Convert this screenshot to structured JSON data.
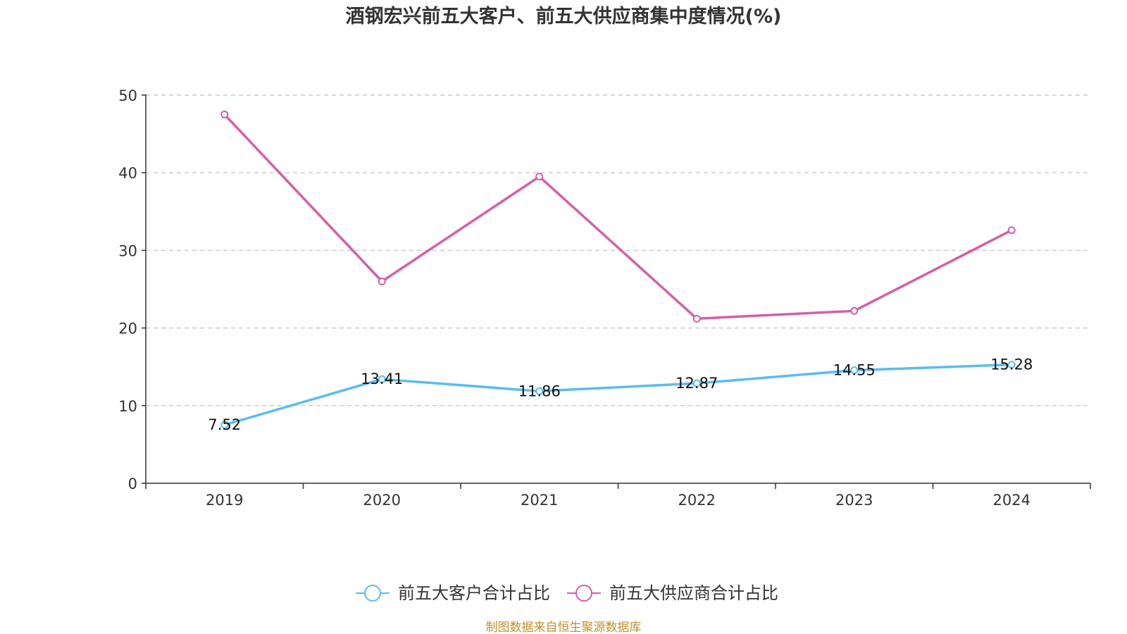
{
  "chart_data": {
    "type": "line",
    "title": "酒钢宏兴前五大客户、前五大供应商集中度情况(%)",
    "categories": [
      "2019",
      "2020",
      "2021",
      "2022",
      "2023",
      "2024"
    ],
    "ylim": [
      0,
      50
    ],
    "yticks": [
      0,
      10,
      20,
      30,
      40,
      50
    ],
    "grid": true,
    "legend_position": "bottom-center",
    "series": [
      {
        "name": "前五大客户合计占比",
        "color": "#5bbcee",
        "values": [
          7.52,
          13.41,
          11.86,
          12.87,
          14.55,
          15.28
        ],
        "labels": [
          "7.52",
          "13.41",
          "11.86",
          "12.87",
          "14.55",
          "15.28"
        ],
        "show_labels": true
      },
      {
        "name": "前五大供应商合计占比",
        "color": "#d45fa6",
        "values": [
          47.5,
          26.0,
          39.5,
          21.2,
          22.2,
          32.6
        ],
        "show_labels": false
      }
    ],
    "source": "制图数据来自恒生聚源数据库"
  }
}
